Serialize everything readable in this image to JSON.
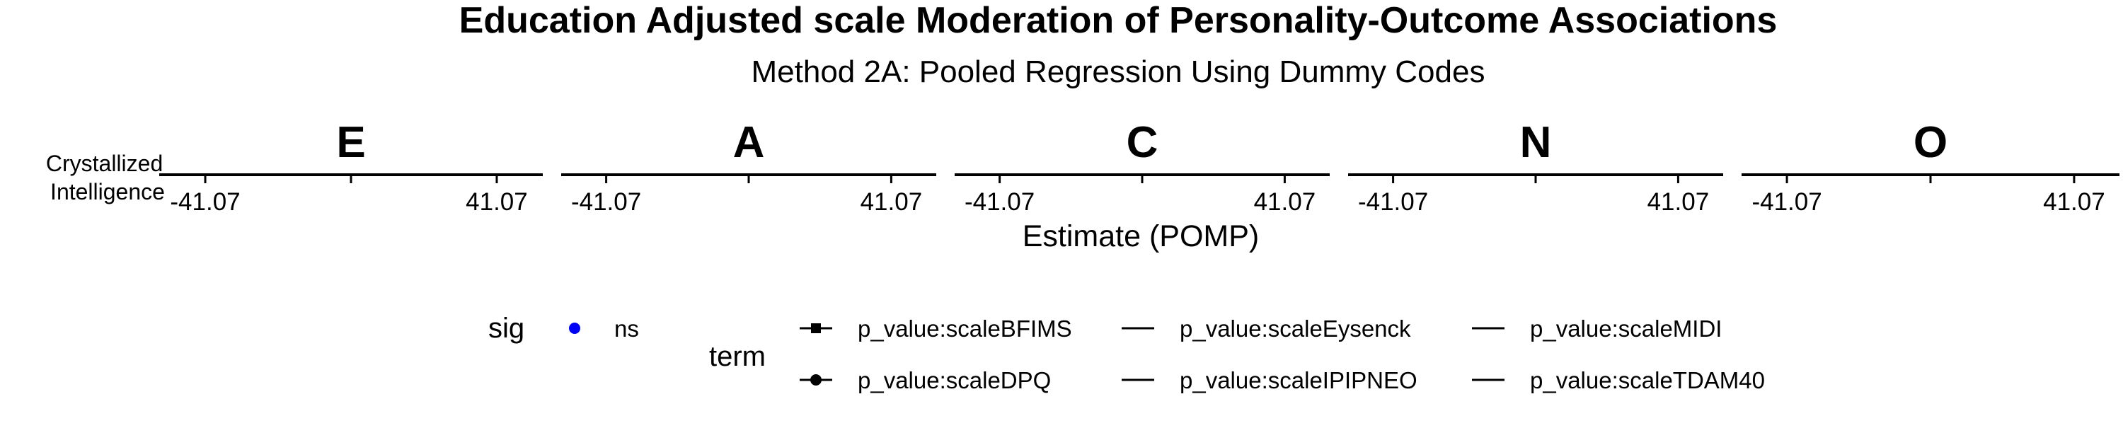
{
  "chart_data": {
    "type": "scatter",
    "title": "Education Adjusted scale Moderation of Personality-Outcome Associations",
    "subtitle": "Method 2A: Pooled Regression Using Dummy Codes",
    "facets": [
      "E",
      "A",
      "C",
      "N",
      "O"
    ],
    "rows": [
      "Crystallized\nIntelligence"
    ],
    "xlabel": "Estimate (POMP)",
    "xticks": [
      "-41.07",
      "41.07"
    ],
    "xlim": [
      -41.07,
      41.07
    ],
    "points": [],
    "legend": {
      "position": "bottom",
      "sig": {
        "title": "sig",
        "items": [
          {
            "label": "ns",
            "color": "#0000FF"
          }
        ]
      },
      "term": {
        "title": "term",
        "items": [
          {
            "label": "p_value:scaleBFIMS",
            "shape": "square"
          },
          {
            "label": "p_value:scaleDPQ",
            "shape": "circle"
          },
          {
            "label": "p_value:scaleEysenck",
            "shape": "none"
          },
          {
            "label": "p_value:scaleIPIPNEO",
            "shape": "none"
          },
          {
            "label": "p_value:scaleMIDI",
            "shape": "none"
          },
          {
            "label": "p_value:scaleTDAM40",
            "shape": "none"
          }
        ]
      }
    }
  }
}
